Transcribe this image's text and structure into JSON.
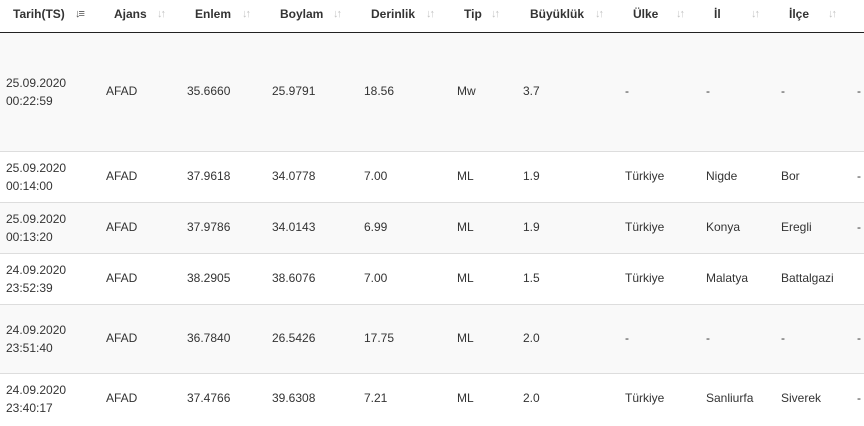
{
  "table": {
    "columns": [
      {
        "key": "date",
        "label": "Tarih(TS)",
        "sort": "desc"
      },
      {
        "key": "agency",
        "label": "Ajans",
        "sort": "none"
      },
      {
        "key": "lat",
        "label": "Enlem",
        "sort": "none"
      },
      {
        "key": "lon",
        "label": "Boylam",
        "sort": "none"
      },
      {
        "key": "depth",
        "label": "Derinlik",
        "sort": "none"
      },
      {
        "key": "type",
        "label": "Tip",
        "sort": "none"
      },
      {
        "key": "magnitude",
        "label": "Büyüklük",
        "sort": "none"
      },
      {
        "key": "country",
        "label": "Ülke",
        "sort": "none"
      },
      {
        "key": "province",
        "label": "İl",
        "sort": "none"
      },
      {
        "key": "district",
        "label": "İlçe",
        "sort": "none"
      }
    ],
    "sort_icon": "sort-arrows-icon",
    "active_sort_icon": "sort-descending-icon",
    "rows": [
      {
        "date": "25.09.2020",
        "time": "00:22:59",
        "agency": "AFAD",
        "lat": "35.6660",
        "lon": "25.9791",
        "depth": "18.56",
        "type": "Mw",
        "magnitude": "3.7",
        "country": "-",
        "province": "-",
        "district": "-",
        "edge": "-"
      },
      {
        "date": "25.09.2020",
        "time": "00:14:00",
        "agency": "AFAD",
        "lat": "37.9618",
        "lon": "34.0778",
        "depth": "7.00",
        "type": "ML",
        "magnitude": "1.9",
        "country": "Türkiye",
        "province": "Nigde",
        "district": "Bor",
        "edge": "-"
      },
      {
        "date": "25.09.2020",
        "time": "00:13:20",
        "agency": "AFAD",
        "lat": "37.9786",
        "lon": "34.0143",
        "depth": "6.99",
        "type": "ML",
        "magnitude": "1.9",
        "country": "Türkiye",
        "province": "Konya",
        "district": "Eregli",
        "edge": "-"
      },
      {
        "date": "24.09.2020",
        "time": "23:52:39",
        "agency": "AFAD",
        "lat": "38.2905",
        "lon": "38.6076",
        "depth": "7.00",
        "type": "ML",
        "magnitude": "1.5",
        "country": "Türkiye",
        "province": "Malatya",
        "district": "Battalgazi",
        "edge": ""
      },
      {
        "date": "24.09.2020",
        "time": "23:51:40",
        "agency": "AFAD",
        "lat": "36.7840",
        "lon": "26.5426",
        "depth": "17.75",
        "type": "ML",
        "magnitude": "2.0",
        "country": "-",
        "province": "-",
        "district": "-",
        "edge": "-"
      },
      {
        "date": "24.09.2020",
        "time": "23:40:17",
        "agency": "AFAD",
        "lat": "37.4766",
        "lon": "39.6308",
        "depth": "7.21",
        "type": "ML",
        "magnitude": "2.0",
        "country": "Türkiye",
        "province": "Sanliurfa",
        "district": "Siverek",
        "edge": "-"
      }
    ]
  },
  "colors": {
    "header_border": "#222222",
    "row_border": "#dddddd",
    "row_alt_bg": "#f9f9f9",
    "sort_icon": "#c4c4c4",
    "active_sort_icon": "#555555",
    "text": "#333333"
  }
}
